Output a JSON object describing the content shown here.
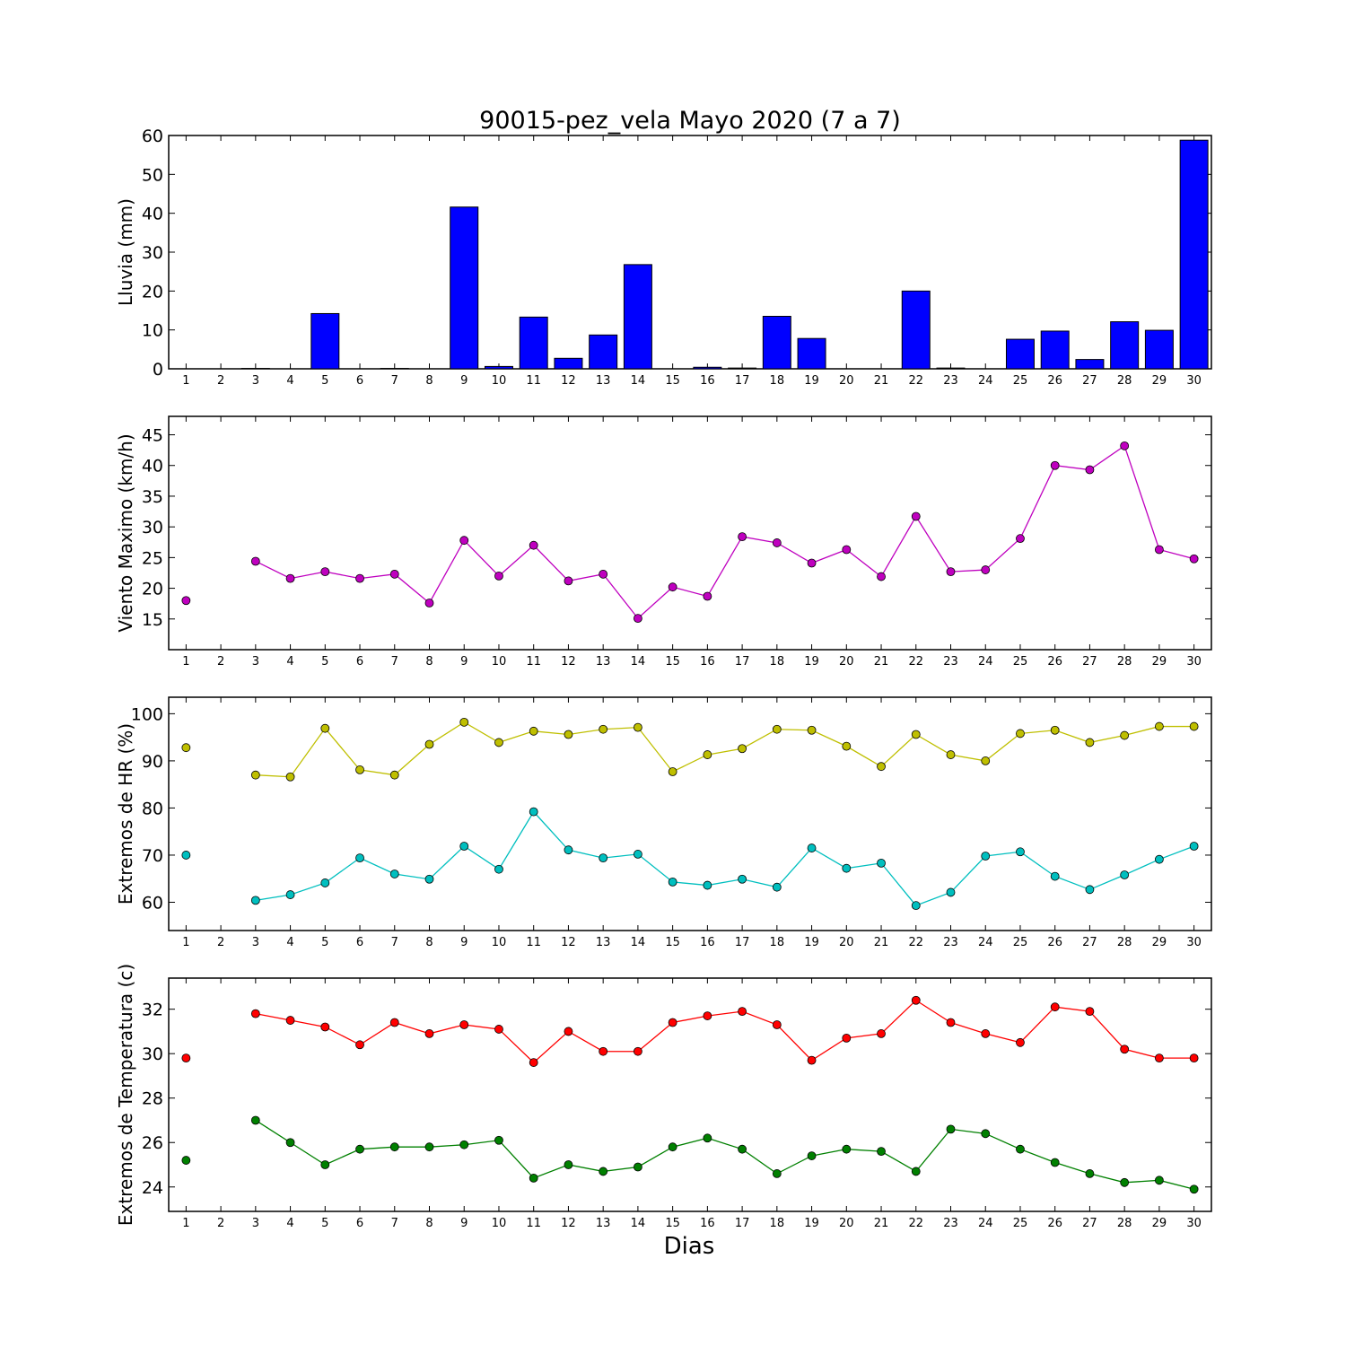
{
  "title": "90015-pez_vela Mayo 2020  (7 a 7)",
  "xlabel": "Dias",
  "colors": {
    "rain": "#0000ff",
    "wind": "#bf00bf",
    "hr_max": "#bfbf00",
    "hr_min": "#00bfbf",
    "temp_max": "#ff0000",
    "temp_min": "#008000"
  },
  "chart_data": [
    {
      "type": "bar",
      "ylabel": "Lluvia (mm)",
      "ylim": [
        0,
        60
      ],
      "yticks": [
        0,
        10,
        20,
        30,
        40,
        50,
        60
      ],
      "x": [
        1,
        2,
        3,
        4,
        5,
        6,
        7,
        8,
        9,
        10,
        11,
        12,
        13,
        14,
        15,
        16,
        17,
        18,
        19,
        20,
        21,
        22,
        23,
        24,
        25,
        26,
        27,
        28,
        29,
        30
      ],
      "series": [
        {
          "values": [
            0,
            0,
            0.1,
            0,
            14.2,
            0,
            0.1,
            0,
            41.6,
            0.6,
            13.3,
            2.7,
            8.7,
            26.8,
            0,
            0.4,
            0.2,
            13.5,
            7.8,
            0,
            0,
            20,
            0.2,
            0,
            7.6,
            9.7,
            2.4,
            12.1,
            9.9,
            58.8
          ]
        }
      ]
    },
    {
      "type": "line",
      "ylabel": "Viento Maximo (km/h)",
      "ylim": [
        10,
        48
      ],
      "yticks": [
        15,
        20,
        25,
        30,
        35,
        40,
        45
      ],
      "x": [
        1,
        2,
        3,
        4,
        5,
        6,
        7,
        8,
        9,
        10,
        11,
        12,
        13,
        14,
        15,
        16,
        17,
        18,
        19,
        20,
        21,
        22,
        23,
        24,
        25,
        26,
        27,
        28,
        29,
        30
      ],
      "series": [
        {
          "values": [
            18.0,
            null,
            24.4,
            21.6,
            22.7,
            21.6,
            22.3,
            17.6,
            27.8,
            22.0,
            27.0,
            21.2,
            22.3,
            15.1,
            20.2,
            18.7,
            28.4,
            27.4,
            24.1,
            26.3,
            21.9,
            31.7,
            22.7,
            23.0,
            28.1,
            40.0,
            39.3,
            43.2,
            26.3,
            24.8
          ]
        }
      ]
    },
    {
      "type": "line",
      "ylabel": "Extremos de HR (%)",
      "ylim": [
        54,
        103.5
      ],
      "yticks": [
        60,
        70,
        80,
        90,
        100
      ],
      "x": [
        1,
        2,
        3,
        4,
        5,
        6,
        7,
        8,
        9,
        10,
        11,
        12,
        13,
        14,
        15,
        16,
        17,
        18,
        19,
        20,
        21,
        22,
        23,
        24,
        25,
        26,
        27,
        28,
        29,
        30
      ],
      "series": [
        {
          "values": [
            92.8,
            null,
            87.0,
            86.6,
            96.9,
            88.1,
            87.0,
            93.5,
            98.2,
            93.9,
            96.3,
            95.6,
            96.7,
            97.1,
            87.7,
            91.3,
            92.6,
            96.7,
            96.5,
            93.1,
            88.8,
            95.6,
            91.3,
            90.0,
            95.8,
            96.5,
            93.9,
            95.4,
            97.3,
            97.3
          ]
        },
        {
          "values": [
            70.0,
            null,
            60.4,
            61.6,
            64.1,
            69.4,
            66.0,
            64.9,
            71.9,
            67.0,
            79.2,
            71.1,
            69.4,
            70.2,
            64.3,
            63.6,
            64.9,
            63.2,
            71.5,
            67.2,
            68.3,
            59.3,
            62.1,
            69.8,
            70.7,
            65.5,
            62.7,
            65.8,
            69.1,
            71.9
          ]
        }
      ]
    },
    {
      "type": "line",
      "ylabel": "Extremos de Temperatura (c)",
      "ylim": [
        22.9,
        33.4
      ],
      "yticks": [
        24,
        26,
        28,
        30,
        32
      ],
      "x": [
        1,
        2,
        3,
        4,
        5,
        6,
        7,
        8,
        9,
        10,
        11,
        12,
        13,
        14,
        15,
        16,
        17,
        18,
        19,
        20,
        21,
        22,
        23,
        24,
        25,
        26,
        27,
        28,
        29,
        30
      ],
      "series": [
        {
          "values": [
            29.8,
            null,
            31.8,
            31.5,
            31.2,
            30.4,
            31.4,
            30.9,
            31.3,
            31.1,
            29.6,
            31.0,
            30.1,
            30.1,
            31.4,
            31.7,
            31.9,
            31.3,
            29.7,
            30.7,
            30.9,
            32.4,
            31.4,
            30.9,
            30.5,
            32.1,
            31.9,
            30.2,
            29.8,
            29.8
          ]
        },
        {
          "values": [
            25.2,
            null,
            27.0,
            26.0,
            25.0,
            25.7,
            25.8,
            25.8,
            25.9,
            26.1,
            24.4,
            25.0,
            24.7,
            24.9,
            25.8,
            26.2,
            25.7,
            24.6,
            25.4,
            25.7,
            25.6,
            24.7,
            26.6,
            26.4,
            25.7,
            25.1,
            24.6,
            24.2,
            24.3,
            23.9
          ]
        }
      ]
    }
  ]
}
